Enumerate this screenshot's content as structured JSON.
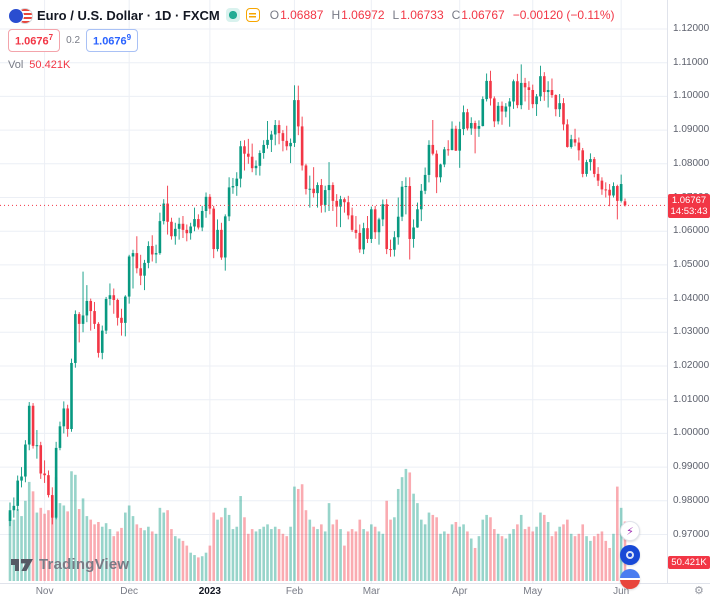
{
  "header": {
    "symbol_title": "Euro / U.S. Dollar · 1D · FXCM",
    "ohlc": {
      "o_label": "O",
      "o": "1.06887",
      "h_label": "H",
      "h": "1.06972",
      "l_label": "L",
      "l": "1.06733",
      "c_label": "C",
      "c": "1.06767",
      "change": "−0.00120 (−0.11%)"
    },
    "sell_price": "1.0676",
    "sell_sup": "7",
    "spread": "0.2",
    "buy_price": "1.0676",
    "buy_sup": "9",
    "vol_label": "Vol",
    "vol_value": "50.421K"
  },
  "last_price": {
    "value": "1.06767",
    "countdown": "14:53:43",
    "price": 1.06767
  },
  "volume_axis_label": "50.421K",
  "logo": {
    "text": "TradingView"
  },
  "icons": [
    "eur-usd-pair-icon",
    "market-status-icon",
    "quick-actions-icon",
    "lightning-icon",
    "broker-blue-icon",
    "globe-icon",
    "gear-icon"
  ],
  "colors": {
    "up": "#089981",
    "down": "#f23645",
    "vol_up": "rgba(8,153,129,0.42)",
    "vol_down": "rgba(242,54,69,0.42)",
    "buy_blue": "#2962ff",
    "grid": "#eceff5",
    "axis_text": "#787b86",
    "label_bg": "#f23645"
  },
  "price_axis": {
    "labels": [
      "1.12000",
      "1.11000",
      "1.10000",
      "1.09000",
      "1.08000",
      "1.07000",
      "1.06000",
      "1.05000",
      "1.04000",
      "1.03000",
      "1.02000",
      "1.01000",
      "1.00000",
      "0.99000",
      "0.98000",
      "0.97000"
    ],
    "max": 1.12,
    "min": 0.97
  },
  "time_axis": {
    "ticks": [
      {
        "label": "Nov",
        "index": 9
      },
      {
        "label": "Dec",
        "index": 31
      },
      {
        "label": "2023",
        "index": 52,
        "major": true
      },
      {
        "label": "Feb",
        "index": 74
      },
      {
        "label": "Mar",
        "index": 94
      },
      {
        "label": "Apr",
        "index": 117
      },
      {
        "label": "May",
        "index": 136
      },
      {
        "label": "Jun",
        "index": 159
      }
    ]
  },
  "chart_data": {
    "type": "candlestick",
    "symbol": "EUR/USD",
    "description": "Euro / U.S. Dollar",
    "timeframe": "1D",
    "exchange": "FXCM",
    "title": "Euro / U.S. Dollar · 1D · FXCM",
    "price_range_visible": [
      0.97,
      1.12
    ],
    "date_range_visible": [
      "late Oct 2022",
      "early Jun 2023"
    ],
    "last_bar": {
      "open": 1.06887,
      "high": 1.06972,
      "low": 1.06733,
      "close": 1.06767,
      "change": -0.0012,
      "change_pct": -0.11,
      "volume_k": 50.421
    },
    "candle_format": [
      "open",
      "high",
      "low",
      "close",
      "volume_k"
    ],
    "candles": [
      [
        0.974,
        0.9795,
        0.9725,
        0.9772,
        58
      ],
      [
        0.9772,
        0.981,
        0.975,
        0.9785,
        52
      ],
      [
        0.9785,
        0.9875,
        0.977,
        0.986,
        61
      ],
      [
        0.986,
        0.99,
        0.984,
        0.9872,
        55
      ],
      [
        0.9872,
        0.998,
        0.9855,
        0.9967,
        68
      ],
      [
        0.9967,
        1.0093,
        0.995,
        1.0082,
        84
      ],
      [
        1.0082,
        1.009,
        0.9955,
        0.9963,
        76
      ],
      [
        0.9963,
        1.001,
        0.9925,
        0.9965,
        58
      ],
      [
        0.9965,
        0.9975,
        0.9865,
        0.9881,
        62
      ],
      [
        0.9881,
        0.992,
        0.9853,
        0.9876,
        57
      ],
      [
        0.9876,
        0.989,
        0.981,
        0.9817,
        60
      ],
      [
        0.9817,
        0.984,
        0.973,
        0.975,
        72
      ],
      [
        0.975,
        0.9975,
        0.9745,
        0.9957,
        88
      ],
      [
        0.9957,
        1.0035,
        0.995,
        1.0021,
        66
      ],
      [
        1.0021,
        1.0095,
        1.0,
        1.0074,
        64
      ],
      [
        1.0074,
        1.0085,
        0.999,
        1.0013,
        59
      ],
      [
        1.0013,
        1.0222,
        1.0005,
        1.0209,
        93
      ],
      [
        1.0209,
        1.0365,
        1.0195,
        1.0354,
        90
      ],
      [
        1.0354,
        1.036,
        1.027,
        1.0325,
        61
      ],
      [
        1.0325,
        1.048,
        1.03,
        1.035,
        70
      ],
      [
        1.035,
        1.044,
        1.033,
        1.0393,
        55
      ],
      [
        1.0393,
        1.04,
        1.0305,
        1.0363,
        52
      ],
      [
        1.0363,
        1.039,
        1.031,
        1.0325,
        48
      ],
      [
        1.0325,
        1.033,
        1.0225,
        1.0239,
        50
      ],
      [
        1.0239,
        1.032,
        1.022,
        1.0305,
        46
      ],
      [
        1.0305,
        1.0405,
        1.0295,
        1.0399,
        49
      ],
      [
        1.0399,
        1.0445,
        1.038,
        1.041,
        44
      ],
      [
        1.041,
        1.043,
        1.0355,
        1.0396,
        38
      ],
      [
        1.0396,
        1.04,
        1.032,
        1.0343,
        42
      ],
      [
        1.0343,
        1.037,
        1.029,
        1.0328,
        45
      ],
      [
        1.0328,
        1.041,
        1.0288,
        1.0406,
        58
      ],
      [
        1.0406,
        1.053,
        1.0385,
        1.0525,
        64
      ],
      [
        1.0525,
        1.0545,
        1.043,
        1.0535,
        55
      ],
      [
        1.0535,
        1.0585,
        1.0475,
        1.049,
        48
      ],
      [
        1.049,
        1.053,
        1.044,
        1.0468,
        45
      ],
      [
        1.0468,
        1.0515,
        1.0425,
        1.0506,
        43
      ],
      [
        1.0506,
        1.057,
        1.049,
        1.0556,
        46
      ],
      [
        1.0556,
        1.0588,
        1.051,
        1.0531,
        42
      ],
      [
        1.0531,
        1.056,
        1.0505,
        1.0535,
        40
      ],
      [
        1.0535,
        1.0655,
        1.053,
        1.063,
        62
      ],
      [
        1.063,
        1.0695,
        1.062,
        1.0682,
        58
      ],
      [
        1.0682,
        1.0735,
        1.059,
        1.0628,
        60
      ],
      [
        1.0628,
        1.064,
        1.0575,
        1.0585,
        44
      ],
      [
        1.0585,
        1.0625,
        1.056,
        1.0607,
        38
      ],
      [
        1.0607,
        1.064,
        1.0575,
        1.0622,
        36
      ],
      [
        1.0622,
        1.0645,
        1.058,
        1.0604,
        34
      ],
      [
        1.0604,
        1.062,
        1.057,
        1.0594,
        30
      ],
      [
        1.0594,
        1.0625,
        1.0575,
        1.0614,
        24
      ],
      [
        1.0614,
        1.067,
        1.06,
        1.0636,
        22
      ],
      [
        1.0636,
        1.065,
        1.0605,
        1.0611,
        20
      ],
      [
        1.0611,
        1.0675,
        1.06,
        1.066,
        21
      ],
      [
        1.066,
        1.0715,
        1.064,
        1.0702,
        24
      ],
      [
        1.0702,
        1.071,
        1.065,
        1.0667,
        30
      ],
      [
        1.0667,
        1.0675,
        1.052,
        1.0547,
        58
      ],
      [
        1.0547,
        1.0635,
        1.054,
        1.0604,
        52
      ],
      [
        1.0604,
        1.0625,
        1.0515,
        1.0522,
        54
      ],
      [
        1.0522,
        1.065,
        1.0483,
        1.0644,
        62
      ],
      [
        1.0644,
        1.076,
        1.063,
        1.073,
        56
      ],
      [
        1.073,
        1.0758,
        1.0711,
        1.0734,
        44
      ],
      [
        1.0734,
        1.0775,
        1.0705,
        1.0756,
        46
      ],
      [
        1.0756,
        1.0868,
        1.073,
        1.0852,
        72
      ],
      [
        1.0852,
        1.087,
        1.078,
        1.083,
        54
      ],
      [
        1.083,
        1.0874,
        1.08,
        1.0821,
        40
      ],
      [
        1.0821,
        1.086,
        1.0775,
        1.0787,
        44
      ],
      [
        1.0787,
        1.081,
        1.0766,
        1.0794,
        42
      ],
      [
        1.0794,
        1.084,
        1.0765,
        1.0832,
        44
      ],
      [
        1.0832,
        1.087,
        1.0815,
        1.0856,
        46
      ],
      [
        1.0856,
        1.0927,
        1.0845,
        1.0871,
        48
      ],
      [
        1.0871,
        1.0898,
        1.0835,
        1.0887,
        44
      ],
      [
        1.0887,
        1.093,
        1.0855,
        1.0915,
        46
      ],
      [
        1.0915,
        1.0929,
        1.0858,
        1.0891,
        44
      ],
      [
        1.0891,
        1.09,
        1.0837,
        1.0868,
        40
      ],
      [
        1.0868,
        1.0913,
        1.084,
        1.0852,
        38
      ],
      [
        1.0852,
        1.0875,
        1.0802,
        1.0862,
        46
      ],
      [
        1.0862,
        1.1033,
        1.085,
        1.0989,
        80
      ],
      [
        1.0989,
        1.1032,
        1.0885,
        1.0911,
        78
      ],
      [
        1.0911,
        1.094,
        1.078,
        1.0795,
        82
      ],
      [
        1.0795,
        1.08,
        1.0709,
        1.0725,
        60
      ],
      [
        1.0725,
        1.0765,
        1.067,
        1.0726,
        52
      ],
      [
        1.0726,
        1.079,
        1.07,
        1.0713,
        46
      ],
      [
        1.0713,
        1.0745,
        1.067,
        1.0737,
        44
      ],
      [
        1.0737,
        1.0755,
        1.0655,
        1.0678,
        48
      ],
      [
        1.0678,
        1.0735,
        1.0656,
        1.0722,
        42
      ],
      [
        1.0722,
        1.0805,
        1.066,
        1.0737,
        66
      ],
      [
        1.0737,
        1.0745,
        1.066,
        1.069,
        48
      ],
      [
        1.069,
        1.071,
        1.0613,
        1.0673,
        52
      ],
      [
        1.0673,
        1.0705,
        1.0612,
        1.0695,
        44
      ],
      [
        1.0695,
        1.07,
        1.0655,
        1.0686,
        30
      ],
      [
        1.0686,
        1.0705,
        1.0635,
        1.0647,
        42
      ],
      [
        1.0647,
        1.067,
        1.0598,
        1.0604,
        44
      ],
      [
        1.0604,
        1.0645,
        1.0578,
        1.0595,
        42
      ],
      [
        1.0595,
        1.062,
        1.0536,
        1.0546,
        52
      ],
      [
        1.0546,
        1.0625,
        1.0532,
        1.0609,
        44
      ],
      [
        1.0609,
        1.0645,
        1.0565,
        1.0577,
        42
      ],
      [
        1.0577,
        1.0673,
        1.0565,
        1.0665,
        48
      ],
      [
        1.0665,
        1.0675,
        1.0577,
        1.0597,
        46
      ],
      [
        1.0597,
        1.064,
        1.056,
        1.0635,
        42
      ],
      [
        1.0635,
        1.0694,
        1.0615,
        1.068,
        40
      ],
      [
        1.068,
        1.0695,
        1.0532,
        1.0547,
        68
      ],
      [
        1.0547,
        1.0575,
        1.0524,
        1.0545,
        52
      ],
      [
        1.0545,
        1.06,
        1.0525,
        1.0582,
        54
      ],
      [
        1.0582,
        1.07,
        1.056,
        1.0643,
        78
      ],
      [
        1.0643,
        1.0749,
        1.063,
        1.0732,
        88
      ],
      [
        1.0732,
        1.076,
        1.065,
        1.0734,
        95
      ],
      [
        1.0734,
        1.076,
        1.0516,
        1.0577,
        92
      ],
      [
        1.0577,
        1.0635,
        1.0551,
        1.0611,
        74
      ],
      [
        1.0611,
        1.0685,
        1.061,
        1.0665,
        66
      ],
      [
        1.0665,
        1.074,
        1.063,
        1.072,
        52
      ],
      [
        1.072,
        1.0789,
        1.071,
        1.0767,
        48
      ],
      [
        1.0767,
        1.087,
        1.0745,
        1.0856,
        58
      ],
      [
        1.0856,
        1.093,
        1.0825,
        1.083,
        56
      ],
      [
        1.083,
        1.084,
        1.0713,
        1.076,
        54
      ],
      [
        1.076,
        1.08,
        1.0745,
        1.0798,
        40
      ],
      [
        1.0798,
        1.085,
        1.079,
        1.0843,
        42
      ],
      [
        1.0843,
        1.087,
        1.0824,
        1.0841,
        40
      ],
      [
        1.0841,
        1.0926,
        1.084,
        1.0904,
        48
      ],
      [
        1.0904,
        1.0913,
        1.0838,
        1.0839,
        50
      ],
      [
        1.0839,
        1.0925,
        1.0788,
        1.0903,
        46
      ],
      [
        1.0903,
        1.0973,
        1.0885,
        1.0953,
        48
      ],
      [
        1.0953,
        1.0963,
        1.0899,
        1.0905,
        42
      ],
      [
        1.0905,
        1.0938,
        1.0886,
        1.0921,
        36
      ],
      [
        1.0921,
        1.0928,
        1.0831,
        1.0904,
        28
      ],
      [
        1.0904,
        1.0929,
        1.088,
        1.0912,
        38
      ],
      [
        1.0912,
        1.1,
        1.0911,
        1.0992,
        52
      ],
      [
        1.0992,
        1.1068,
        1.0985,
        1.1046,
        56
      ],
      [
        1.1046,
        1.1076,
        1.0973,
        1.0994,
        54
      ],
      [
        1.0994,
        1.1,
        1.0909,
        1.0926,
        44
      ],
      [
        1.0926,
        1.0983,
        1.0917,
        1.0972,
        40
      ],
      [
        1.0972,
        1.0985,
        1.0916,
        1.0955,
        38
      ],
      [
        1.0955,
        1.098,
        1.0938,
        1.097,
        36
      ],
      [
        1.097,
        1.0995,
        1.091,
        1.0985,
        40
      ],
      [
        1.0985,
        1.105,
        1.0963,
        1.1045,
        44
      ],
      [
        1.1045,
        1.1067,
        1.0965,
        1.0974,
        48
      ],
      [
        1.0974,
        1.1095,
        1.0962,
        1.104,
        56
      ],
      [
        1.104,
        1.1055,
        1.0985,
        1.1027,
        44
      ],
      [
        1.1027,
        1.1045,
        1.096,
        1.1019,
        46
      ],
      [
        1.1019,
        1.1035,
        1.0965,
        1.0977,
        42
      ],
      [
        1.0977,
        1.1007,
        1.0942,
        1.1,
        46
      ],
      [
        1.1,
        1.1091,
        1.0986,
        1.106,
        58
      ],
      [
        1.106,
        1.1072,
        1.0987,
        1.1013,
        56
      ],
      [
        1.1013,
        1.1045,
        1.0967,
        1.1019,
        50
      ],
      [
        1.1019,
        1.1053,
        1.0996,
        1.1004,
        38
      ],
      [
        1.1004,
        1.1006,
        1.0941,
        1.0962,
        42
      ],
      [
        1.0962,
        1.1007,
        1.0939,
        1.098,
        46
      ],
      [
        1.098,
        1.0995,
        1.0899,
        1.0917,
        48
      ],
      [
        1.0917,
        1.0932,
        1.0848,
        1.085,
        52
      ],
      [
        1.085,
        1.0886,
        1.0845,
        1.0873,
        40
      ],
      [
        1.0873,
        1.0904,
        1.0852,
        1.0863,
        38
      ],
      [
        1.0863,
        1.0878,
        1.081,
        1.084,
        40
      ],
      [
        1.084,
        1.0847,
        1.076,
        1.077,
        48
      ],
      [
        1.077,
        1.0812,
        1.0762,
        1.0805,
        38
      ],
      [
        1.0805,
        1.0831,
        1.078,
        1.0814,
        34
      ],
      [
        1.0814,
        1.082,
        1.076,
        1.077,
        38
      ],
      [
        1.077,
        1.079,
        1.0734,
        1.075,
        40
      ],
      [
        1.075,
        1.076,
        1.0708,
        1.0724,
        42
      ],
      [
        1.0724,
        1.0745,
        1.07,
        1.0723,
        34
      ],
      [
        1.0723,
        1.074,
        1.0674,
        1.0706,
        28
      ],
      [
        1.0706,
        1.0745,
        1.07,
        1.0734,
        40
      ],
      [
        1.0734,
        1.0738,
        1.0635,
        1.069,
        80
      ],
      [
        1.069,
        1.0768,
        1.0685,
        1.074,
        62
      ],
      [
        1.06887,
        1.06972,
        1.06733,
        1.06767,
        50.421
      ]
    ]
  }
}
